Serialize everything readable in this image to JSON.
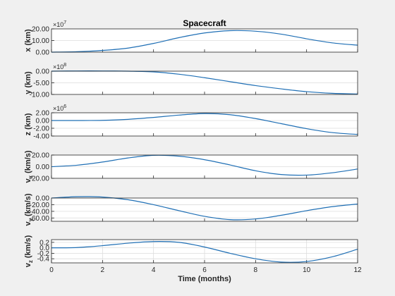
{
  "figure": {
    "title": "Spacecraft",
    "xlabel": "Time (months)",
    "xticks": [
      "0",
      "2",
      "4",
      "6",
      "8",
      "10",
      "12"
    ],
    "xlim": [
      0,
      12
    ],
    "colors": {
      "background": "#f0f0f0",
      "axes_bg": "#ffffff",
      "line": "#1f6fb5",
      "grid": "#dcdcdc",
      "axis": "#262626"
    }
  },
  "chart_data": [
    {
      "type": "line",
      "ylabel": "x (km)",
      "exponent": "10^7",
      "ylim": [
        0,
        20
      ],
      "yticks": [
        "0.00",
        "10.00",
        "20.00"
      ],
      "x": [
        0,
        1,
        2,
        3,
        4,
        5,
        6,
        7,
        8,
        9,
        10,
        11,
        12
      ],
      "values": [
        0,
        0.4,
        1.5,
        3.5,
        7.5,
        12.5,
        16.5,
        18.5,
        18,
        15.5,
        11.5,
        8,
        6
      ]
    },
    {
      "type": "line",
      "ylabel": "y (km)",
      "exponent": "10^8",
      "ylim": [
        -10,
        0
      ],
      "yticks": [
        "0.00",
        "-5.00",
        "-10.00"
      ],
      "x": [
        0,
        1,
        2,
        3,
        4,
        5,
        6,
        7,
        8,
        9,
        10,
        11,
        12
      ],
      "values": [
        0,
        0.1,
        0.1,
        0,
        -0.3,
        -1.3,
        -2.8,
        -4.5,
        -6.2,
        -7.6,
        -8.8,
        -9.5,
        -9.8
      ]
    },
    {
      "type": "line",
      "ylabel": "z (km)",
      "exponent": "10^6",
      "ylim": [
        -4,
        2
      ],
      "yticks": [
        "2.00",
        "0.00",
        "-2.00",
        "-4.00"
      ],
      "x": [
        0,
        1,
        2,
        3,
        4,
        5,
        6,
        7,
        8,
        9,
        10,
        11,
        12
      ],
      "values": [
        0,
        0,
        0.05,
        0.3,
        0.8,
        1.4,
        1.8,
        1.5,
        0.5,
        -0.8,
        -2.1,
        -3.1,
        -3.6
      ]
    },
    {
      "type": "line",
      "ylabel": "v_x (km/s)",
      "exponent": "",
      "ylim": [
        -20,
        20
      ],
      "yticks": [
        "20.00",
        "0.00",
        "-20.00"
      ],
      "x": [
        0,
        1,
        2,
        3,
        4,
        5,
        6,
        7,
        8,
        9,
        10,
        11,
        12
      ],
      "values": [
        0,
        2.5,
        8,
        15,
        19.5,
        18,
        12,
        3,
        -7,
        -13.5,
        -14.5,
        -10.5,
        -4
      ]
    },
    {
      "type": "line",
      "ylabel": "v_y (km/s)",
      "exponent": "",
      "ylim": [
        -70,
        0
      ],
      "yticks": [
        "0.00",
        "-20.00",
        "-40.00",
        "-60.00"
      ],
      "x": [
        0,
        1,
        2,
        3,
        4,
        5,
        6,
        7,
        8,
        9,
        10,
        11,
        12
      ],
      "values": [
        0,
        4,
        3,
        -5,
        -20,
        -38,
        -55,
        -65,
        -63,
        -52,
        -38,
        -26,
        -18
      ]
    },
    {
      "type": "line",
      "ylabel": "v_z (km/s)",
      "exponent": "",
      "ylim": [
        -0.55,
        0.3
      ],
      "yticks": [
        "0.2",
        "0.0",
        "-0.2",
        "-0.4"
      ],
      "x": [
        0,
        1,
        2,
        3,
        4,
        5,
        6,
        7,
        8,
        9,
        10,
        11,
        12
      ],
      "values": [
        0,
        0.01,
        0.08,
        0.17,
        0.23,
        0.2,
        0.03,
        -0.2,
        -0.4,
        -0.52,
        -0.5,
        -0.33,
        -0.05
      ]
    }
  ]
}
